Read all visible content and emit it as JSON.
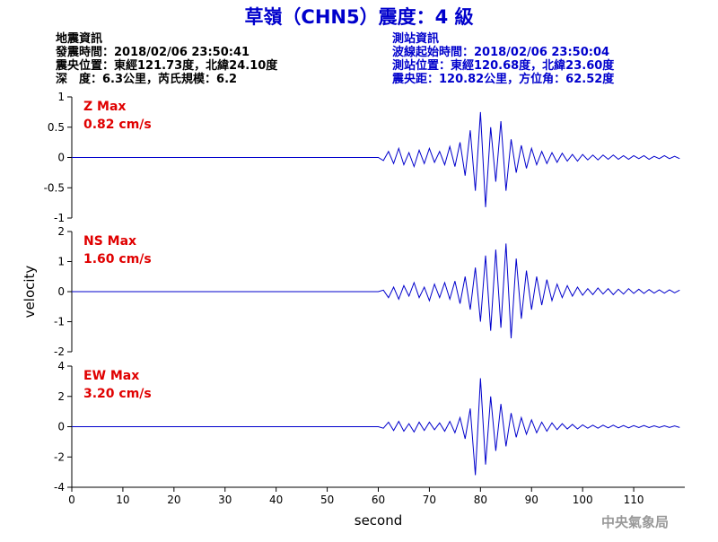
{
  "header": {
    "title": "草嶺（CHN5）震度：4 級",
    "left": [
      "地震資訊",
      "發震時間：2018/02/06 23:50:41",
      "震央位置：東經121.73度，北緯24.10度",
      "深　度：6.3公里，芮氏規模：6.2"
    ],
    "right": [
      "測站資訊",
      "波線起始時間：2018/02/06 23:50:04",
      "測站位置：東經120.68度，北緯23.60度",
      "震央距：120.82公里，方位角：62.52度"
    ],
    "footer": "中央氣象局"
  },
  "chart_data": [
    {
      "type": "line",
      "annotation": [
        "Z Max",
        "0.82 cm/s"
      ],
      "annotation_color": "#e00000",
      "xlim": [
        0,
        120
      ],
      "ylim": [
        -1,
        1
      ],
      "yticks": [
        -1,
        -0.5,
        0,
        0.5,
        1
      ],
      "x": [
        0,
        60,
        61,
        62,
        63,
        64,
        65,
        66,
        67,
        68,
        69,
        70,
        71,
        72,
        73,
        74,
        75,
        76,
        77,
        78,
        79,
        80,
        81,
        82,
        83,
        84,
        85,
        86,
        87,
        88,
        89,
        90,
        91,
        92,
        93,
        94,
        95,
        96,
        97,
        98,
        99,
        100,
        101,
        102,
        103,
        104,
        105,
        106,
        107,
        108,
        109,
        110,
        111,
        112,
        113,
        114,
        115,
        116,
        117,
        118,
        119
      ],
      "series": [
        {
          "color": "#0000cc",
          "values": [
            0,
            0,
            -0.05,
            0.1,
            -0.1,
            0.15,
            -0.12,
            0.08,
            -0.15,
            0.12,
            -0.1,
            0.15,
            -0.08,
            0.1,
            -0.12,
            0.18,
            -0.15,
            0.25,
            -0.3,
            0.45,
            -0.55,
            0.75,
            -0.82,
            0.5,
            -0.4,
            0.6,
            -0.55,
            0.3,
            -0.25,
            0.2,
            -0.18,
            0.15,
            -0.12,
            0.1,
            -0.1,
            0.08,
            -0.08,
            0.07,
            -0.06,
            0.05,
            -0.06,
            0.05,
            -0.04,
            0.04,
            -0.04,
            0.04,
            -0.03,
            0.04,
            -0.03,
            0.03,
            -0.03,
            0.03,
            -0.02,
            0.03,
            -0.03,
            0.02,
            -0.02,
            0.03,
            -0.02,
            0.02,
            -0.02
          ]
        }
      ]
    },
    {
      "type": "line",
      "annotation": [
        "NS Max",
        "1.60 cm/s"
      ],
      "annotation_color": "#e00000",
      "ylabel": "velocity",
      "xlim": [
        0,
        120
      ],
      "ylim": [
        -2,
        2
      ],
      "yticks": [
        -2,
        -1,
        0,
        1,
        2
      ],
      "x": [
        0,
        60,
        61,
        62,
        63,
        64,
        65,
        66,
        67,
        68,
        69,
        70,
        71,
        72,
        73,
        74,
        75,
        76,
        77,
        78,
        79,
        80,
        81,
        82,
        83,
        84,
        85,
        86,
        87,
        88,
        89,
        90,
        91,
        92,
        93,
        94,
        95,
        96,
        97,
        98,
        99,
        100,
        101,
        102,
        103,
        104,
        105,
        106,
        107,
        108,
        109,
        110,
        111,
        112,
        113,
        114,
        115,
        116,
        117,
        118,
        119
      ],
      "series": [
        {
          "color": "#0000cc",
          "values": [
            0,
            0,
            0.05,
            -0.2,
            0.15,
            -0.25,
            0.2,
            -0.15,
            0.3,
            -0.2,
            0.15,
            -0.3,
            0.25,
            -0.2,
            0.3,
            -0.25,
            0.35,
            -0.4,
            0.5,
            -0.6,
            0.8,
            -1.0,
            1.2,
            -1.3,
            1.4,
            -1.2,
            1.6,
            -1.55,
            1.1,
            -0.9,
            0.7,
            -0.6,
            0.5,
            -0.45,
            0.4,
            -0.3,
            0.25,
            -0.2,
            0.2,
            -0.15,
            0.15,
            -0.12,
            0.1,
            -0.1,
            0.12,
            -0.08,
            0.1,
            -0.1,
            0.08,
            -0.08,
            0.1,
            -0.06,
            0.08,
            -0.06,
            0.07,
            -0.05,
            0.06,
            -0.05,
            0.06,
            -0.04,
            0.05
          ]
        }
      ]
    },
    {
      "type": "line",
      "annotation": [
        "EW Max",
        "3.20 cm/s"
      ],
      "annotation_color": "#e00000",
      "xlabel": "second",
      "xlim": [
        0,
        120
      ],
      "ylim": [
        -4,
        4
      ],
      "yticks": [
        -4,
        -2,
        0,
        2,
        4
      ],
      "xticks": [
        0,
        10,
        20,
        30,
        40,
        50,
        60,
        70,
        80,
        90,
        100,
        110
      ],
      "x": [
        0,
        60,
        61,
        62,
        63,
        64,
        65,
        66,
        67,
        68,
        69,
        70,
        71,
        72,
        73,
        74,
        75,
        76,
        77,
        78,
        79,
        80,
        81,
        82,
        83,
        84,
        85,
        86,
        87,
        88,
        89,
        90,
        91,
        92,
        93,
        94,
        95,
        96,
        97,
        98,
        99,
        100,
        101,
        102,
        103,
        104,
        105,
        106,
        107,
        108,
        109,
        110,
        111,
        112,
        113,
        114,
        115,
        116,
        117,
        118,
        119
      ],
      "series": [
        {
          "color": "#0000cc",
          "values": [
            0,
            0,
            -0.1,
            0.3,
            -0.25,
            0.35,
            -0.3,
            0.2,
            -0.35,
            0.3,
            -0.25,
            0.3,
            -0.2,
            0.25,
            -0.3,
            0.35,
            -0.4,
            0.6,
            -0.8,
            1.2,
            -3.2,
            3.2,
            -2.5,
            2.0,
            -1.6,
            1.5,
            -1.3,
            0.9,
            -0.7,
            0.6,
            -0.5,
            0.45,
            -0.4,
            0.3,
            -0.3,
            0.25,
            -0.2,
            0.2,
            -0.15,
            0.15,
            -0.15,
            0.12,
            -0.1,
            0.1,
            -0.1,
            0.1,
            -0.08,
            0.1,
            -0.08,
            0.08,
            -0.08,
            0.07,
            -0.06,
            0.08,
            -0.06,
            0.06,
            -0.05,
            0.06,
            -0.05,
            0.05,
            -0.05
          ]
        }
      ]
    }
  ]
}
